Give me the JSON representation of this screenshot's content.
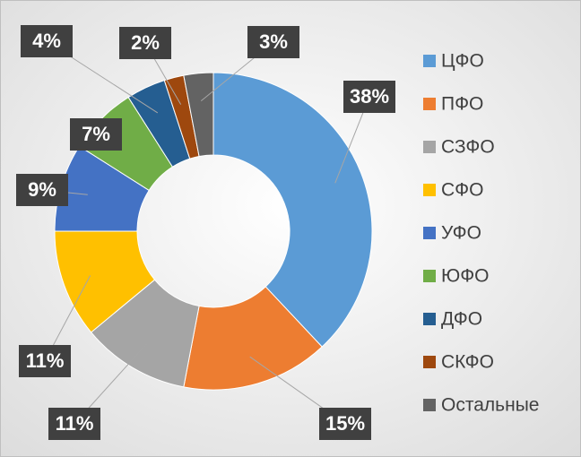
{
  "chart_data": {
    "type": "donut",
    "categories": [
      "ЦФО",
      "ПФО",
      "СЗФО",
      "СФО",
      "УФО",
      "ЮФО",
      "ДФО",
      "СКФО",
      "Остальные"
    ],
    "values": [
      38,
      15,
      11,
      11,
      9,
      7,
      4,
      2,
      3
    ],
    "value_labels": [
      "38%",
      "15%",
      "11%",
      "11%",
      "9%",
      "7%",
      "4%",
      "2%",
      "3%"
    ],
    "colors": [
      "#5b9bd5",
      "#ed7d31",
      "#a5a5a5",
      "#ffc000",
      "#4472c4",
      "#70ad47",
      "#255e91",
      "#9e480e",
      "#636363"
    ],
    "legend": "right"
  }
}
